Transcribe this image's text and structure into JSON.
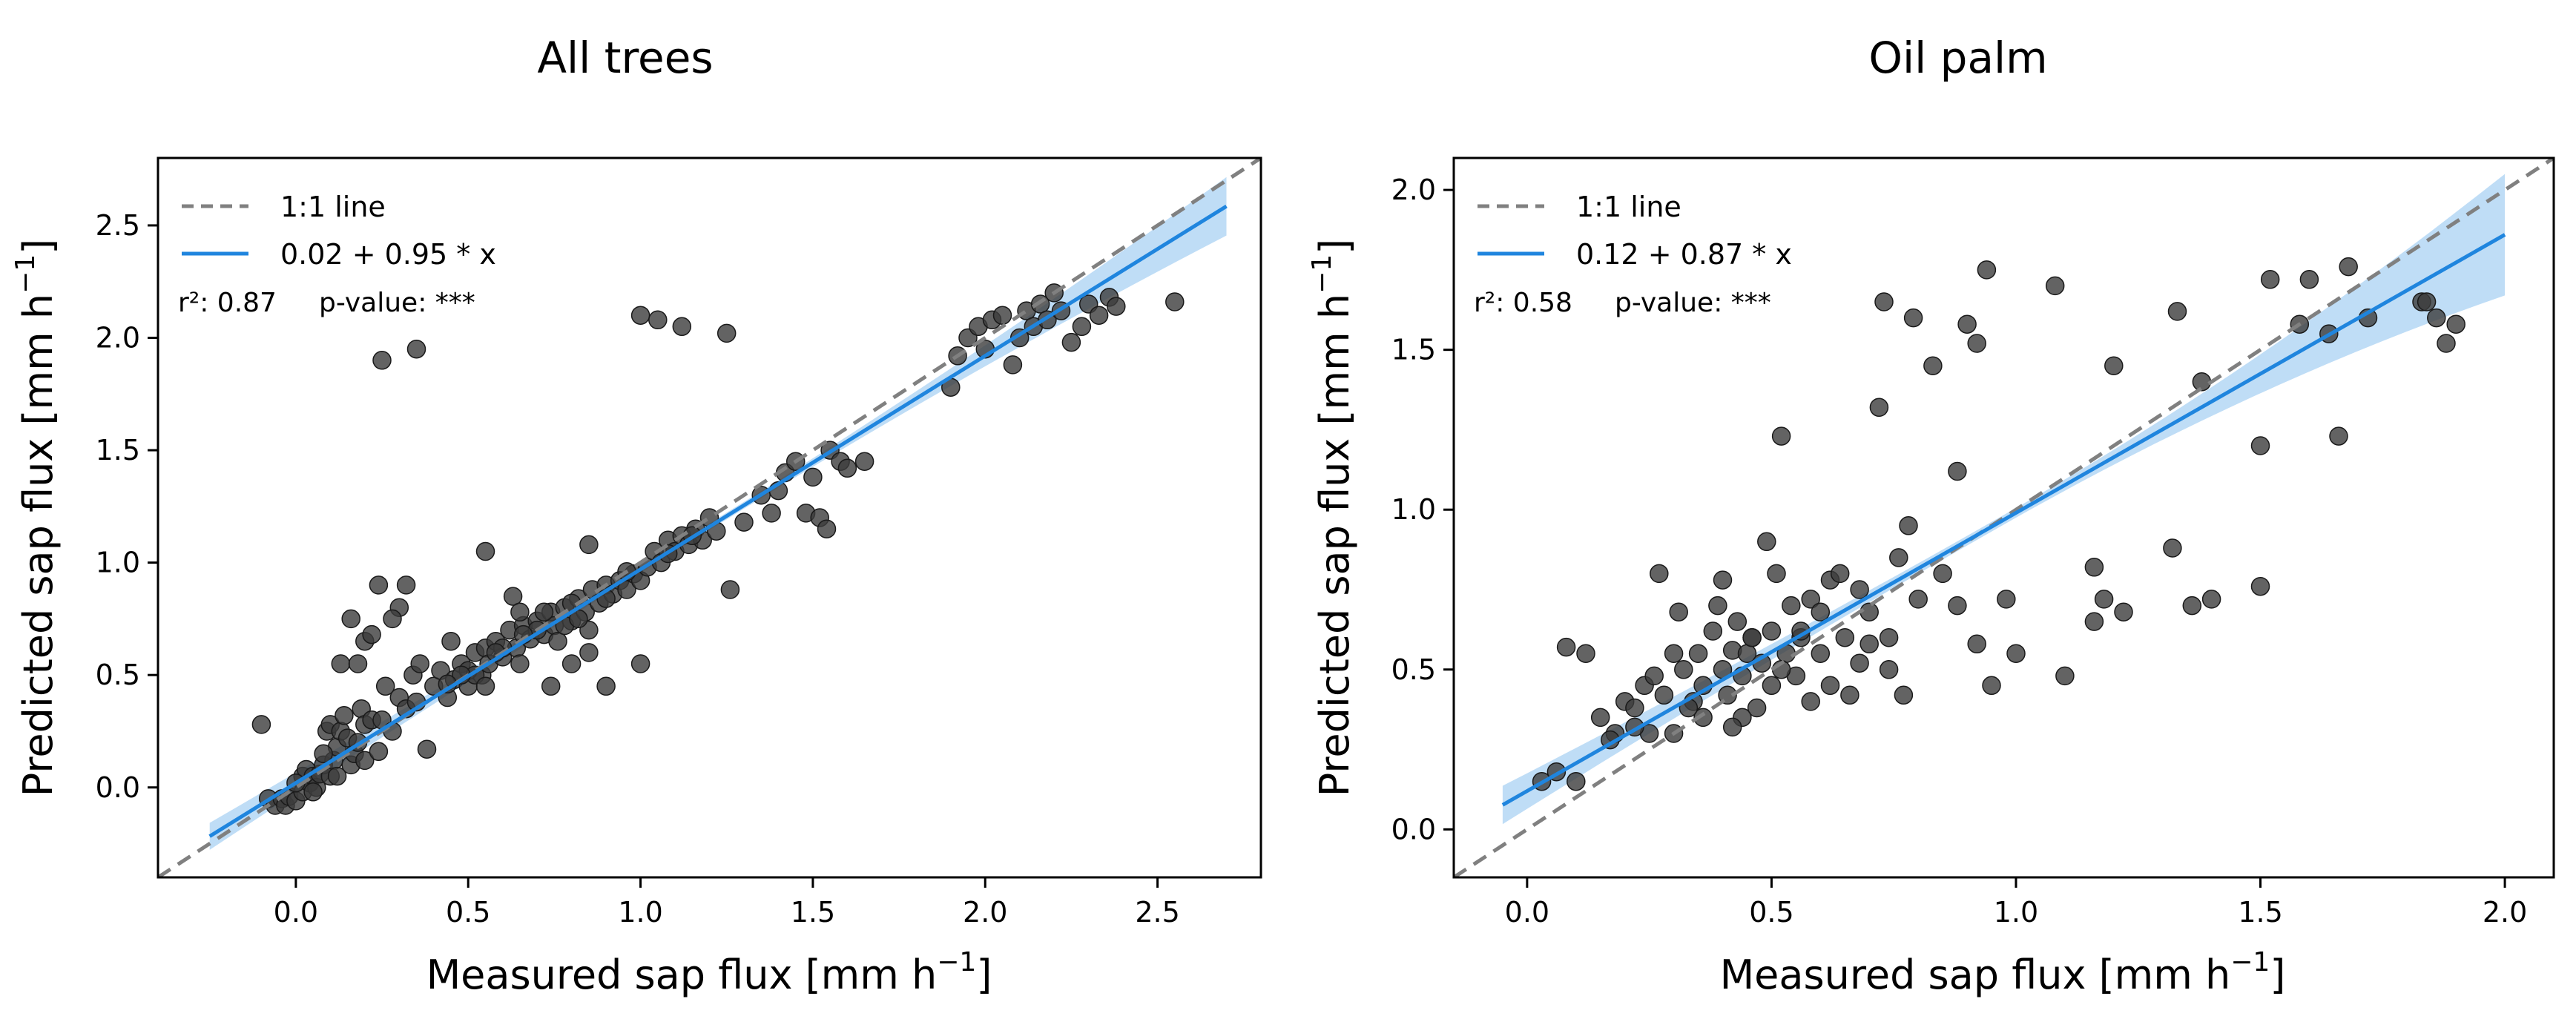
{
  "figure": {
    "background": "#ffffff"
  },
  "chart_data": [
    {
      "type": "scatter",
      "title": "All trees",
      "xlabel": "Measured sap flux [mm h",
      "ylabel": "Predicted sap flux [mm h",
      "unit_exponent": "−1",
      "unit_close": "]",
      "xlim": [
        -0.4,
        2.8
      ],
      "ylim": [
        -0.4,
        2.8
      ],
      "xticks": [
        0.0,
        0.5,
        1.0,
        1.5,
        2.0,
        2.5
      ],
      "xtick_labels": [
        "0.0",
        "0.5",
        "1.0",
        "1.5",
        "2.0",
        "2.5"
      ],
      "yticks": [
        0.0,
        0.5,
        1.0,
        1.5,
        2.0,
        2.5
      ],
      "ytick_labels": [
        "0.0",
        "0.5",
        "1.0",
        "1.5",
        "2.0",
        "2.5"
      ],
      "grid": false,
      "legend": {
        "placement": "top-left",
        "entries": [
          {
            "label": "1:1 line",
            "style": "dashed",
            "color": "#808080"
          },
          {
            "label": "0.02 + 0.95 * x",
            "style": "solid",
            "color": "#1f85de"
          }
        ],
        "stats": {
          "r2": "r²: 0.87",
          "p": "p-value: ***"
        }
      },
      "fit": {
        "intercept": 0.02,
        "slope": 0.95,
        "x_range": [
          -0.25,
          2.7
        ],
        "ci_start": 0.06,
        "ci_end": 0.13
      },
      "colors": {
        "points": "#3c3c3c",
        "fit": "#1f85de",
        "band": "#a9d2f3",
        "identity": "#808080"
      },
      "points": [
        [
          -0.1,
          0.28
        ],
        [
          -0.08,
          -0.05
        ],
        [
          -0.06,
          -0.08
        ],
        [
          -0.04,
          -0.05
        ],
        [
          -0.03,
          -0.08
        ],
        [
          -0.02,
          -0.04
        ],
        [
          0.0,
          -0.06
        ],
        [
          0.02,
          -0.02
        ],
        [
          0.02,
          0.05
        ],
        [
          0.03,
          0.08
        ],
        [
          0.04,
          0.02
        ],
        [
          0.05,
          0.05
        ],
        [
          0.06,
          0.0
        ],
        [
          0.07,
          0.06
        ],
        [
          0.08,
          0.1
        ],
        [
          0.09,
          0.25
        ],
        [
          0.1,
          0.28
        ],
        [
          0.1,
          0.05
        ],
        [
          0.11,
          0.12
        ],
        [
          0.12,
          0.18
        ],
        [
          0.13,
          0.25
        ],
        [
          0.14,
          0.32
        ],
        [
          0.15,
          0.22
        ],
        [
          0.16,
          0.1
        ],
        [
          0.17,
          0.15
        ],
        [
          0.18,
          0.2
        ],
        [
          0.19,
          0.35
        ],
        [
          0.2,
          0.12
        ],
        [
          0.2,
          0.28
        ],
        [
          0.22,
          0.3
        ],
        [
          0.24,
          0.16
        ],
        [
          0.25,
          0.3
        ],
        [
          0.26,
          0.45
        ],
        [
          0.28,
          0.25
        ],
        [
          0.3,
          0.4
        ],
        [
          0.32,
          0.35
        ],
        [
          0.34,
          0.5
        ],
        [
          0.35,
          0.38
        ],
        [
          0.36,
          0.55
        ],
        [
          0.38,
          0.17
        ],
        [
          0.4,
          0.45
        ],
        [
          0.42,
          0.52
        ],
        [
          0.44,
          0.4
        ],
        [
          0.46,
          0.48
        ],
        [
          0.48,
          0.55
        ],
        [
          0.5,
          0.45
        ],
        [
          0.52,
          0.6
        ],
        [
          0.54,
          0.5
        ],
        [
          0.55,
          0.62
        ],
        [
          0.56,
          0.55
        ],
        [
          0.58,
          0.65
        ],
        [
          0.6,
          0.58
        ],
        [
          0.62,
          0.7
        ],
        [
          0.64,
          0.62
        ],
        [
          0.65,
          0.55
        ],
        [
          0.66,
          0.72
        ],
        [
          0.68,
          0.66
        ],
        [
          0.7,
          0.74
        ],
        [
          0.72,
          0.68
        ],
        [
          0.74,
          0.78
        ],
        [
          0.75,
          0.72
        ],
        [
          0.76,
          0.65
        ],
        [
          0.78,
          0.8
        ],
        [
          0.8,
          0.74
        ],
        [
          0.82,
          0.84
        ],
        [
          0.84,
          0.78
        ],
        [
          0.85,
          0.7
        ],
        [
          0.86,
          0.88
        ],
        [
          0.88,
          0.82
        ],
        [
          0.9,
          0.9
        ],
        [
          0.92,
          0.86
        ],
        [
          0.94,
          0.92
        ],
        [
          0.96,
          0.88
        ],
        [
          0.98,
          0.95
        ],
        [
          1.0,
          0.92
        ],
        [
          1.02,
          0.98
        ],
        [
          1.04,
          1.05
        ],
        [
          1.06,
          1.0
        ],
        [
          1.08,
          1.1
        ],
        [
          1.1,
          1.05
        ],
        [
          1.12,
          1.12
        ],
        [
          1.14,
          1.08
        ],
        [
          1.16,
          1.15
        ],
        [
          1.18,
          1.1
        ],
        [
          1.2,
          1.2
        ],
        [
          1.22,
          1.14
        ],
        [
          1.26,
          0.88
        ],
        [
          1.3,
          1.18
        ],
        [
          1.35,
          1.3
        ],
        [
          1.38,
          1.22
        ],
        [
          1.4,
          1.32
        ],
        [
          1.42,
          1.4
        ],
        [
          1.45,
          1.45
        ],
        [
          1.48,
          1.22
        ],
        [
          1.5,
          1.38
        ],
        [
          1.52,
          1.2
        ],
        [
          1.54,
          1.15
        ],
        [
          1.55,
          1.5
        ],
        [
          1.58,
          1.45
        ],
        [
          1.6,
          1.42
        ],
        [
          1.65,
          1.45
        ],
        [
          1.0,
          0.55
        ],
        [
          0.55,
          1.05
        ],
        [
          0.3,
          0.8
        ],
        [
          0.28,
          0.75
        ],
        [
          0.24,
          0.9
        ],
        [
          0.16,
          0.75
        ],
        [
          0.13,
          0.55
        ],
        [
          0.18,
          0.55
        ],
        [
          0.2,
          0.65
        ],
        [
          0.22,
          0.68
        ],
        [
          0.85,
          1.08
        ],
        [
          0.74,
          0.45
        ],
        [
          0.9,
          0.45
        ],
        [
          0.63,
          0.85
        ],
        [
          0.45,
          0.65
        ],
        [
          0.32,
          0.9
        ],
        [
          0.25,
          1.9
        ],
        [
          0.35,
          1.95
        ],
        [
          1.0,
          2.1
        ],
        [
          1.05,
          2.08
        ],
        [
          1.12,
          2.05
        ],
        [
          1.25,
          2.02
        ],
        [
          1.9,
          1.78
        ],
        [
          1.92,
          1.92
        ],
        [
          1.95,
          2.0
        ],
        [
          1.98,
          2.05
        ],
        [
          2.0,
          1.95
        ],
        [
          2.02,
          2.08
        ],
        [
          2.05,
          2.1
        ],
        [
          2.08,
          1.88
        ],
        [
          2.1,
          2.0
        ],
        [
          2.12,
          2.12
        ],
        [
          2.14,
          2.05
        ],
        [
          2.16,
          2.15
        ],
        [
          2.18,
          2.08
        ],
        [
          2.2,
          2.2
        ],
        [
          2.22,
          2.12
        ],
        [
          2.25,
          1.98
        ],
        [
          2.28,
          2.05
        ],
        [
          2.3,
          2.15
        ],
        [
          2.33,
          2.1
        ],
        [
          2.36,
          2.18
        ],
        [
          2.38,
          2.14
        ],
        [
          2.55,
          2.16
        ],
        [
          0.0,
          0.02
        ],
        [
          0.05,
          -0.02
        ],
        [
          0.5,
          0.52
        ],
        [
          0.6,
          0.62
        ],
        [
          0.7,
          0.7
        ],
        [
          0.72,
          0.78
        ],
        [
          0.78,
          0.72
        ],
        [
          0.8,
          0.82
        ],
        [
          0.82,
          0.75
        ],
        [
          0.66,
          0.68
        ],
        [
          0.58,
          0.6
        ],
        [
          0.52,
          0.5
        ],
        [
          0.48,
          0.5
        ],
        [
          0.44,
          0.46
        ],
        [
          0.9,
          0.84
        ],
        [
          0.96,
          0.96
        ],
        [
          1.08,
          1.04
        ],
        [
          1.15,
          1.12
        ],
        [
          0.12,
          0.05
        ],
        [
          0.08,
          0.15
        ],
        [
          0.85,
          0.6
        ],
        [
          0.8,
          0.55
        ],
        [
          0.65,
          0.78
        ],
        [
          0.55,
          0.45
        ]
      ]
    },
    {
      "type": "scatter",
      "title": "Oil palm",
      "xlabel": "Measured sap flux [mm h",
      "ylabel": "Predicted sap flux [mm h",
      "unit_exponent": "−1",
      "unit_close": "]",
      "xlim": [
        -0.15,
        2.1
      ],
      "ylim": [
        -0.15,
        2.1
      ],
      "xticks": [
        0.0,
        0.5,
        1.0,
        1.5,
        2.0
      ],
      "xtick_labels": [
        "0.0",
        "0.5",
        "1.0",
        "1.5",
        "2.0"
      ],
      "yticks": [
        0.0,
        0.5,
        1.0,
        1.5,
        2.0
      ],
      "ytick_labels": [
        "0.0",
        "0.5",
        "1.0",
        "1.5",
        "2.0"
      ],
      "grid": false,
      "legend": {
        "placement": "top-left",
        "entries": [
          {
            "label": "1:1 line",
            "style": "dashed",
            "color": "#808080"
          },
          {
            "label": "0.12 + 0.87 * x",
            "style": "solid",
            "color": "#1f85de"
          }
        ],
        "stats": {
          "r2": "r²: 0.58",
          "p": "p-value: ***"
        }
      },
      "fit": {
        "intercept": 0.12,
        "slope": 0.87,
        "x_range": [
          -0.05,
          2.0
        ],
        "ci_start": 0.06,
        "ci_end": 0.19
      },
      "colors": {
        "points": "#3c3c3c",
        "fit": "#1f85de",
        "band": "#a9d2f3",
        "identity": "#808080"
      },
      "points": [
        [
          0.03,
          0.15
        ],
        [
          0.06,
          0.18
        ],
        [
          0.08,
          0.57
        ],
        [
          0.1,
          0.15
        ],
        [
          0.12,
          0.55
        ],
        [
          0.15,
          0.35
        ],
        [
          0.18,
          0.3
        ],
        [
          0.2,
          0.4
        ],
        [
          0.22,
          0.38
        ],
        [
          0.24,
          0.45
        ],
        [
          0.25,
          0.3
        ],
        [
          0.26,
          0.48
        ],
        [
          0.28,
          0.42
        ],
        [
          0.3,
          0.55
        ],
        [
          0.31,
          0.68
        ],
        [
          0.32,
          0.5
        ],
        [
          0.34,
          0.4
        ],
        [
          0.35,
          0.55
        ],
        [
          0.36,
          0.45
        ],
        [
          0.38,
          0.62
        ],
        [
          0.39,
          0.7
        ],
        [
          0.4,
          0.5
        ],
        [
          0.41,
          0.42
        ],
        [
          0.42,
          0.56
        ],
        [
          0.43,
          0.65
        ],
        [
          0.44,
          0.48
        ],
        [
          0.45,
          0.55
        ],
        [
          0.46,
          0.6
        ],
        [
          0.47,
          0.38
        ],
        [
          0.48,
          0.52
        ],
        [
          0.49,
          0.9
        ],
        [
          0.5,
          0.62
        ],
        [
          0.51,
          0.8
        ],
        [
          0.52,
          1.23
        ],
        [
          0.53,
          0.55
        ],
        [
          0.54,
          0.7
        ],
        [
          0.55,
          0.48
        ],
        [
          0.56,
          0.6
        ],
        [
          0.58,
          0.72
        ],
        [
          0.6,
          0.55
        ],
        [
          0.62,
          0.78
        ],
        [
          0.64,
          0.8
        ],
        [
          0.65,
          0.6
        ],
        [
          0.66,
          0.42
        ],
        [
          0.68,
          0.75
        ],
        [
          0.7,
          0.58
        ],
        [
          0.72,
          1.32
        ],
        [
          0.73,
          1.65
        ],
        [
          0.74,
          0.5
        ],
        [
          0.76,
          0.85
        ],
        [
          0.78,
          0.95
        ],
        [
          0.79,
          1.6
        ],
        [
          0.8,
          0.72
        ],
        [
          0.83,
          1.45
        ],
        [
          0.85,
          0.8
        ],
        [
          0.88,
          0.7
        ],
        [
          0.9,
          1.58
        ],
        [
          0.92,
          1.52
        ],
        [
          0.94,
          1.75
        ],
        [
          0.95,
          0.45
        ],
        [
          0.98,
          0.72
        ],
        [
          1.0,
          0.55
        ],
        [
          1.08,
          1.7
        ],
        [
          1.1,
          0.48
        ],
        [
          1.16,
          0.82
        ],
        [
          1.18,
          0.72
        ],
        [
          1.2,
          1.45
        ],
        [
          1.22,
          0.68
        ],
        [
          1.32,
          0.88
        ],
        [
          1.33,
          1.62
        ],
        [
          1.36,
          0.7
        ],
        [
          1.38,
          1.4
        ],
        [
          1.4,
          0.72
        ],
        [
          1.5,
          0.76
        ],
        [
          1.5,
          1.2
        ],
        [
          1.52,
          1.72
        ],
        [
          1.58,
          1.58
        ],
        [
          1.6,
          1.72
        ],
        [
          1.64,
          1.55
        ],
        [
          1.66,
          1.23
        ],
        [
          1.68,
          1.76
        ],
        [
          1.72,
          1.6
        ],
        [
          1.83,
          1.65
        ],
        [
          1.84,
          1.65
        ],
        [
          1.86,
          1.6
        ],
        [
          1.88,
          1.52
        ],
        [
          1.9,
          1.58
        ],
        [
          0.27,
          0.8
        ],
        [
          0.36,
          0.35
        ],
        [
          0.4,
          0.78
        ],
        [
          0.44,
          0.35
        ],
        [
          0.5,
          0.45
        ],
        [
          0.58,
          0.4
        ],
        [
          0.62,
          0.45
        ],
        [
          0.7,
          0.68
        ],
        [
          0.68,
          0.52
        ],
        [
          0.22,
          0.32
        ],
        [
          0.17,
          0.28
        ],
        [
          0.3,
          0.3
        ],
        [
          0.33,
          0.38
        ],
        [
          0.42,
          0.32
        ],
        [
          0.52,
          0.5
        ],
        [
          0.56,
          0.62
        ],
        [
          0.6,
          0.68
        ],
        [
          0.74,
          0.6
        ],
        [
          0.77,
          0.42
        ],
        [
          0.88,
          1.12
        ],
        [
          0.92,
          0.58
        ],
        [
          1.16,
          0.65
        ],
        [
          0.46,
          0.6
        ]
      ]
    }
  ]
}
